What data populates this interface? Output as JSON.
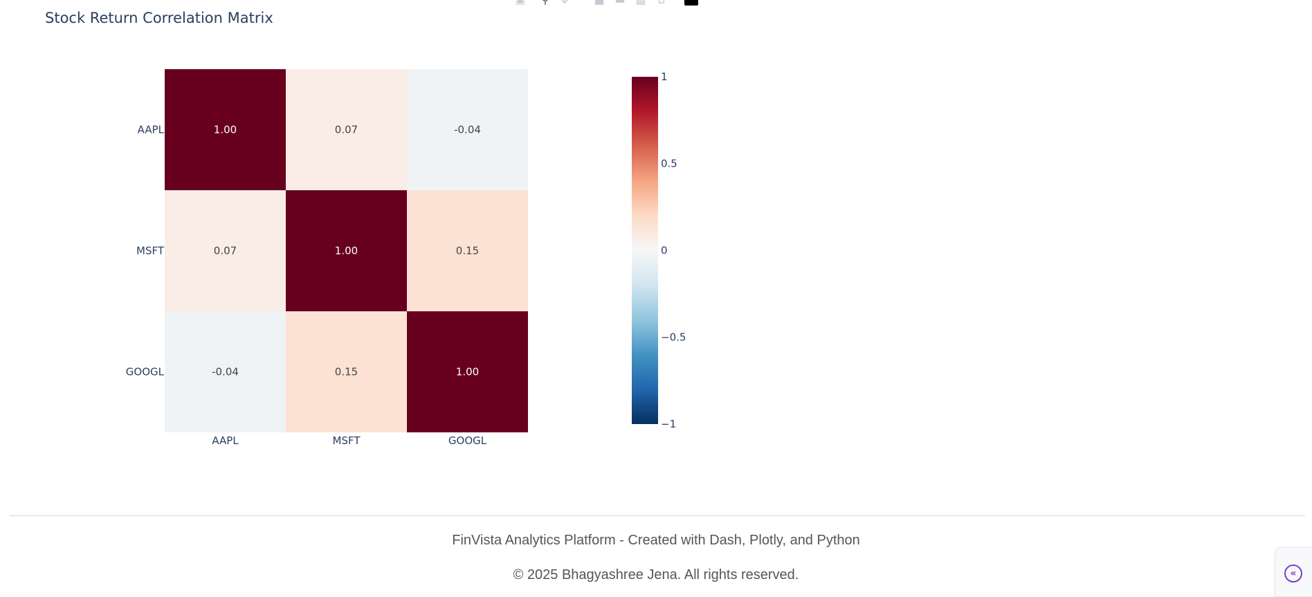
{
  "modebar": {
    "icons": [
      "camera-icon",
      "zoom-icon",
      "pan-icon",
      "zoom-in-icon",
      "zoom-out-icon",
      "autoscale-icon",
      "reset-axes-icon",
      "plotly-logo-icon"
    ]
  },
  "chart_data": {
    "type": "heatmap",
    "title": "Stock Return Correlation Matrix",
    "x": [
      "AAPL",
      "MSFT",
      "GOOGL"
    ],
    "y": [
      "AAPL",
      "MSFT",
      "GOOGL"
    ],
    "z": [
      [
        1.0,
        0.07,
        -0.04
      ],
      [
        0.07,
        1.0,
        0.15
      ],
      [
        -0.04,
        0.15,
        1.0
      ]
    ],
    "cell_labels": [
      [
        "1.00",
        "0.07",
        "-0.04"
      ],
      [
        "0.07",
        "1.00",
        "0.15"
      ],
      [
        "-0.04",
        "0.15",
        "1.00"
      ]
    ],
    "zmin": -1,
    "zmax": 1,
    "colorscale": "RdBu reversed",
    "colorbar_ticks": [
      1,
      0.5,
      0,
      -0.5,
      -1
    ],
    "colorbar_tick_labels": [
      "1",
      "0.5",
      "0",
      "−0.5",
      "−1"
    ],
    "xlabel": "",
    "ylabel": ""
  },
  "footer": {
    "credit": "FinVista Analytics Platform - Created with Dash, Plotly, and Python",
    "copyright": "© 2025 Bhagyashree Jena. All rights reserved."
  },
  "side_toggle": {
    "icon": "double-chevron-left-icon"
  }
}
